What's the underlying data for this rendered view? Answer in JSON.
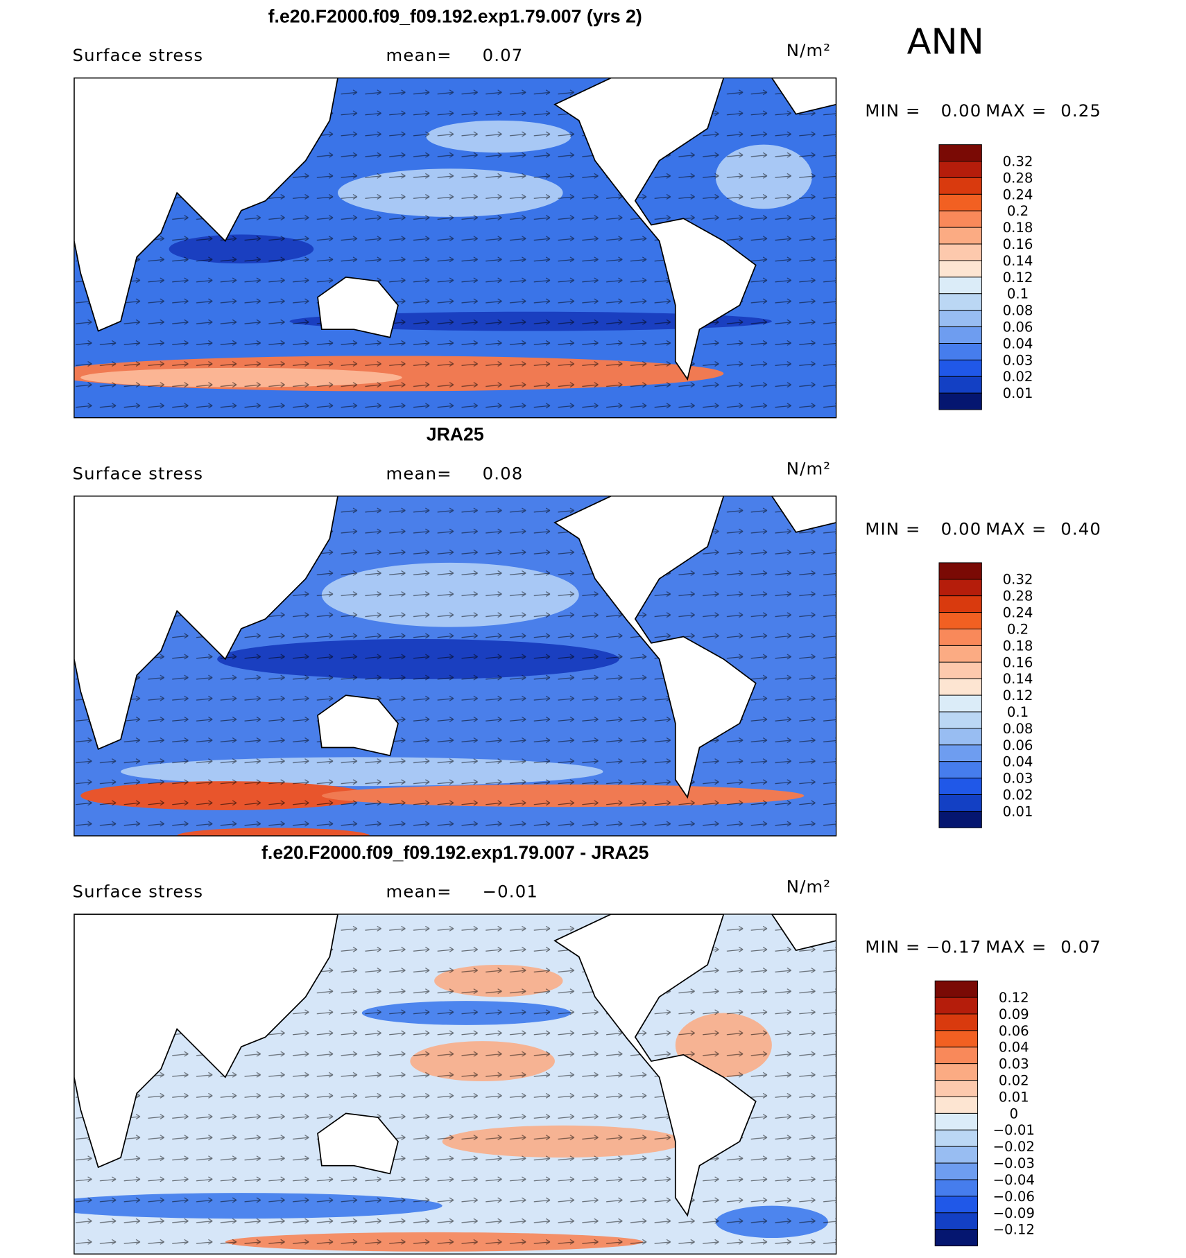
{
  "season": "ANN",
  "panels": [
    {
      "title": "f.e20.F2000.f09_f09.192.exp1.79.007 (yrs 2)",
      "variable": "Surface stress",
      "mean_label": "mean=",
      "mean": "0.07",
      "units": "N/m²",
      "min_label": "MIN =",
      "min": "0.00",
      "max_label": "MAX =",
      "max": "0.25",
      "colorbar": {
        "labels": [
          "0.32",
          "0.28",
          "0.24",
          "0.2",
          "0.18",
          "0.16",
          "0.14",
          "0.12",
          "0.1",
          "0.08",
          "0.06",
          "0.04",
          "0.03",
          "0.02",
          "0.01"
        ],
        "colors": [
          "#7a0a05",
          "#b51d0b",
          "#d93a0e",
          "#f26022",
          "#f9895a",
          "#fbab83",
          "#fdc9ad",
          "#fde5d2",
          "#dbecf8",
          "#bbd7f4",
          "#98bdf2",
          "#6e9df0",
          "#467ded",
          "#2058e8",
          "#1340c4",
          "#051670"
        ]
      }
    },
    {
      "title": "JRA25",
      "variable": "Surface stress",
      "mean_label": "mean=",
      "mean": "0.08",
      "units": "N/m²",
      "min_label": "MIN =",
      "min": "0.00",
      "max_label": "MAX =",
      "max": "0.40",
      "colorbar": {
        "labels": [
          "0.32",
          "0.28",
          "0.24",
          "0.2",
          "0.18",
          "0.16",
          "0.14",
          "0.12",
          "0.1",
          "0.08",
          "0.06",
          "0.04",
          "0.03",
          "0.02",
          "0.01"
        ],
        "colors": [
          "#7a0a05",
          "#b51d0b",
          "#d93a0e",
          "#f26022",
          "#f9895a",
          "#fbab83",
          "#fdc9ad",
          "#fde5d2",
          "#dbecf8",
          "#bbd7f4",
          "#98bdf2",
          "#6e9df0",
          "#467ded",
          "#2058e8",
          "#1340c4",
          "#051670"
        ]
      }
    },
    {
      "title": "f.e20.F2000.f09_f09.192.exp1.79.007 - JRA25",
      "variable": "Surface stress",
      "mean_label": "mean=",
      "mean": "−0.01",
      "units": "N/m²",
      "min_label": "MIN =",
      "min": "−0.17",
      "max_label": "MAX =",
      "max": "0.07",
      "colorbar": {
        "labels": [
          "0.12",
          "0.09",
          "0.06",
          "0.04",
          "0.03",
          "0.02",
          "0.01",
          "0",
          "−0.01",
          "−0.02",
          "−0.03",
          "−0.04",
          "−0.06",
          "−0.09",
          "−0.12"
        ],
        "colors": [
          "#7a0a05",
          "#b51d0b",
          "#d93a0e",
          "#f26022",
          "#f9895a",
          "#fbab83",
          "#fdc9ad",
          "#fde5d2",
          "#dbecf8",
          "#bbd7f4",
          "#98bdf2",
          "#6e9df0",
          "#467ded",
          "#2058e8",
          "#1340c4",
          "#051670"
        ]
      }
    }
  ]
}
